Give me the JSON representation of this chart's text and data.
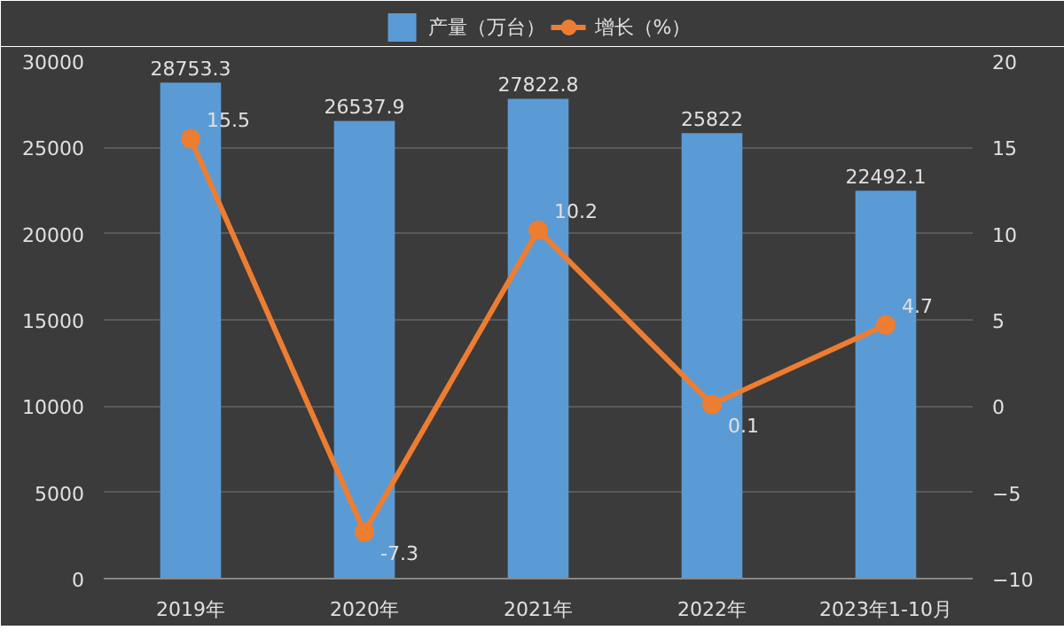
{
  "chart_data": {
    "type": "bar",
    "categories": [
      "2019年",
      "2020年",
      "2021年",
      "2022年",
      "2023年1-10月"
    ],
    "series": [
      {
        "name": "产量（万台）",
        "color": "#5b9bd5",
        "values": [
          28753.3,
          26537.9,
          27822.8,
          25822,
          22492.1
        ]
      },
      {
        "name": "增长（%）",
        "type": "line",
        "axis": "y2",
        "color": "#ed7d31",
        "values": [
          15.5,
          -7.3,
          10.2,
          0.1,
          4.7
        ]
      }
    ],
    "ylim": [
      0,
      30000
    ],
    "yticks": [
      0,
      5000,
      10000,
      15000,
      20000,
      25000,
      30000
    ],
    "y2lim": [
      -10,
      20
    ],
    "y2ticks": [
      -10,
      -5,
      0,
      5,
      10,
      15,
      20
    ],
    "grid": "y",
    "legend": "top",
    "marker": "circle",
    "line_style": "solid",
    "data_labels": true
  }
}
